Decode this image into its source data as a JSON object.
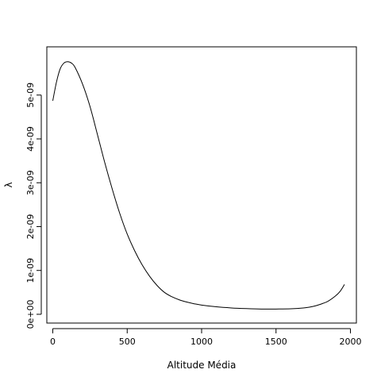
{
  "chart_data": {
    "type": "line",
    "title": "",
    "xlabel": "Altitude Média",
    "ylabel": "λ",
    "xlim": [
      -40,
      2040
    ],
    "ylim": [
      -2e-10,
      6.1e-09
    ],
    "x_ticks": [
      0,
      500,
      1000,
      1500,
      2000
    ],
    "x_tick_labels": [
      "0",
      "500",
      "1000",
      "1500",
      "2000"
    ],
    "y_ticks": [
      0,
      1e-09,
      2e-09,
      3e-09,
      4e-09,
      5e-09
    ],
    "y_tick_labels": [
      "0e+00",
      "1e-09",
      "2e-09",
      "3e-09",
      "4e-09",
      "5e-09"
    ],
    "grid": false,
    "legend": "none",
    "line_color": "#000000",
    "series": [
      {
        "x": [
          0,
          25,
          50,
          75,
          100,
          125,
          150,
          200,
          250,
          300,
          350,
          400,
          450,
          500,
          550,
          600,
          650,
          700,
          750,
          800,
          850,
          900,
          950,
          1000,
          1100,
          1200,
          1300,
          1400,
          1500,
          1600,
          1700,
          1750,
          1800,
          1850,
          1900,
          1930,
          1960
        ],
        "y": [
          4.87e-09,
          5.3e-09,
          5.6e-09,
          5.73e-09,
          5.76e-09,
          5.73e-09,
          5.63e-09,
          5.25e-09,
          4.74e-09,
          4.1e-09,
          3.45e-09,
          2.85e-09,
          2.3e-09,
          1.83e-09,
          1.45e-09,
          1.13e-09,
          8.7e-10,
          6.6e-10,
          5e-10,
          4e-10,
          3.3e-10,
          2.8e-10,
          2.4e-10,
          2.1e-10,
          1.7e-10,
          1.45e-10,
          1.3e-10,
          1.2e-10,
          1.2e-10,
          1.25e-10,
          1.5e-10,
          1.8e-10,
          2.3e-10,
          3e-10,
          4.2e-10,
          5.2e-10,
          6.8e-10
        ]
      }
    ]
  }
}
